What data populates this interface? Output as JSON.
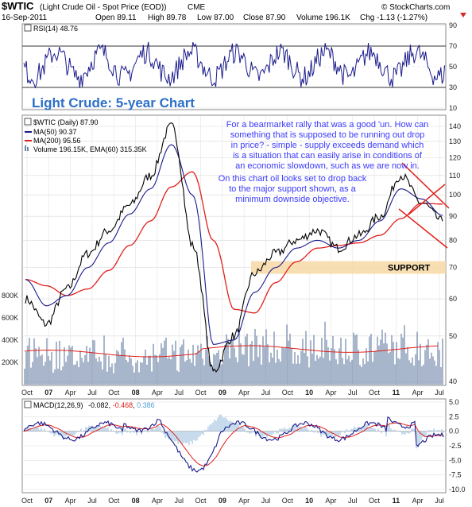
{
  "header": {
    "symbol": "$WTIC",
    "name": "(Light Crude Oil - Spot Price (EOD))",
    "exchange": "CME",
    "brand": "© StockCharts.com",
    "date": "16-Sep-2011",
    "open": "Open 89.11",
    "high": "High 89.78",
    "low": "Low 87.00",
    "close": "Close 87.90",
    "volume": "Volume 196.1K",
    "chg": "Chg -1.13 (-1.27%)"
  },
  "rsi": {
    "label": "RSI(14) 48.76",
    "ticks": [
      "90",
      "70",
      "50",
      "30",
      "10"
    ]
  },
  "main": {
    "title": "Light Crude: 5-year Chart",
    "legend": {
      "price": "$WTIC (Daily) 87.90",
      "ma50": "MA(50) 90.37",
      "ma200": "MA(200) 95.56",
      "volume": "Volume 196.15K, EMA(60) 315.35K"
    },
    "price_ticks": [
      "140",
      "130",
      "120",
      "110",
      "100",
      "90",
      "80",
      "70",
      "60",
      "50",
      "40"
    ],
    "volume_ticks": [
      "800K",
      "600K",
      "400K",
      "200K"
    ],
    "support_label": "SUPPORT",
    "annotation1": [
      "For a bearmarket rally that was a good 'un. How can",
      "something that is supposed to be running out drop",
      "in price? - simple - supply exceeds demand which",
      "is a situation that can easily arise in conditions of",
      "an economic slowdown, such as we are now in."
    ],
    "annotation2": [
      "On this chart oil looks set to drop back",
      "to the major support shown, as a",
      "minimum downside objective."
    ]
  },
  "xaxis": [
    "Oct",
    "07",
    "Apr",
    "Jul",
    "Oct",
    "08",
    "Apr",
    "Jul",
    "Oct",
    "09",
    "Apr",
    "Jul",
    "Oct",
    "10",
    "Apr",
    "Jul",
    "Oct",
    "11",
    "Apr",
    "Jul"
  ],
  "macd": {
    "label": "MACD(12,26,9)",
    "v1": "-0.082",
    "v2": "-0.468",
    "v3": "0.386",
    "ticks": [
      "5.0",
      "2.5",
      "0.0",
      "-2.5",
      "-5.0",
      "-7.5",
      "-10.0"
    ]
  },
  "colors": {
    "price": "#000000",
    "ma50": "#1a1a8c",
    "ma200": "#e0201b",
    "volume": "#6f86a8",
    "annotation": "#3a3aff",
    "support_band": "#f7d9a6"
  },
  "chart_data": [
    {
      "type": "line",
      "title": "RSI(14) 48.76",
      "ylim": [
        10,
        90
      ],
      "reference_lines": [
        70,
        30
      ],
      "last_value": 48.76
    },
    {
      "type": "line",
      "title": "$WTIC (Light Crude Oil - Spot Price (EOD))",
      "y_scale": "log",
      "ylim": [
        40,
        145
      ],
      "x": [
        "Oct 2006",
        "Jan 2007",
        "Apr 2007",
        "Jul 2007",
        "Oct 2007",
        "Jan 2008",
        "Apr 2008",
        "Jul 2008",
        "Oct 2008",
        "Jan 2009",
        "Apr 2009",
        "Jul 2009",
        "Oct 2009",
        "Jan 2010",
        "Apr 2010",
        "Jul 2010",
        "Oct 2010",
        "Jan 2011",
        "Apr 2011",
        "Jul 2011",
        "Sep 2011"
      ],
      "series": [
        {
          "name": "$WTIC (Daily) 87.90",
          "values": [
            60,
            53,
            63,
            75,
            84,
            95,
            110,
            140,
            78,
            42,
            50,
            68,
            75,
            80,
            84,
            77,
            82,
            90,
            110,
            96,
            87.9
          ]
        },
        {
          "name": "MA(50) 90.37",
          "values": [
            66,
            58,
            61,
            70,
            79,
            91,
            103,
            128,
            100,
            48,
            49,
            62,
            70,
            77,
            80,
            77,
            80,
            88,
            103,
            98,
            90.37
          ]
        },
        {
          "name": "MA(200) 95.56",
          "values": [
            66,
            64,
            61,
            63,
            69,
            78,
            88,
            104,
            112,
            80,
            57,
            56,
            65,
            72,
            77,
            78,
            79,
            82,
            89,
            96,
            95.56
          ]
        }
      ],
      "support": 70,
      "volume": {
        "name": "Volume 196.15K, EMA(60) 315.35K",
        "last": 196150,
        "ema60": 315350
      }
    },
    {
      "type": "line",
      "title": "MACD(12,26,9)",
      "ylim": [
        -10,
        5
      ],
      "series": [
        {
          "name": "MACD",
          "last": -0.082
        },
        {
          "name": "Signal",
          "last": -0.468
        },
        {
          "name": "Histogram",
          "last": 0.386
        }
      ]
    }
  ]
}
